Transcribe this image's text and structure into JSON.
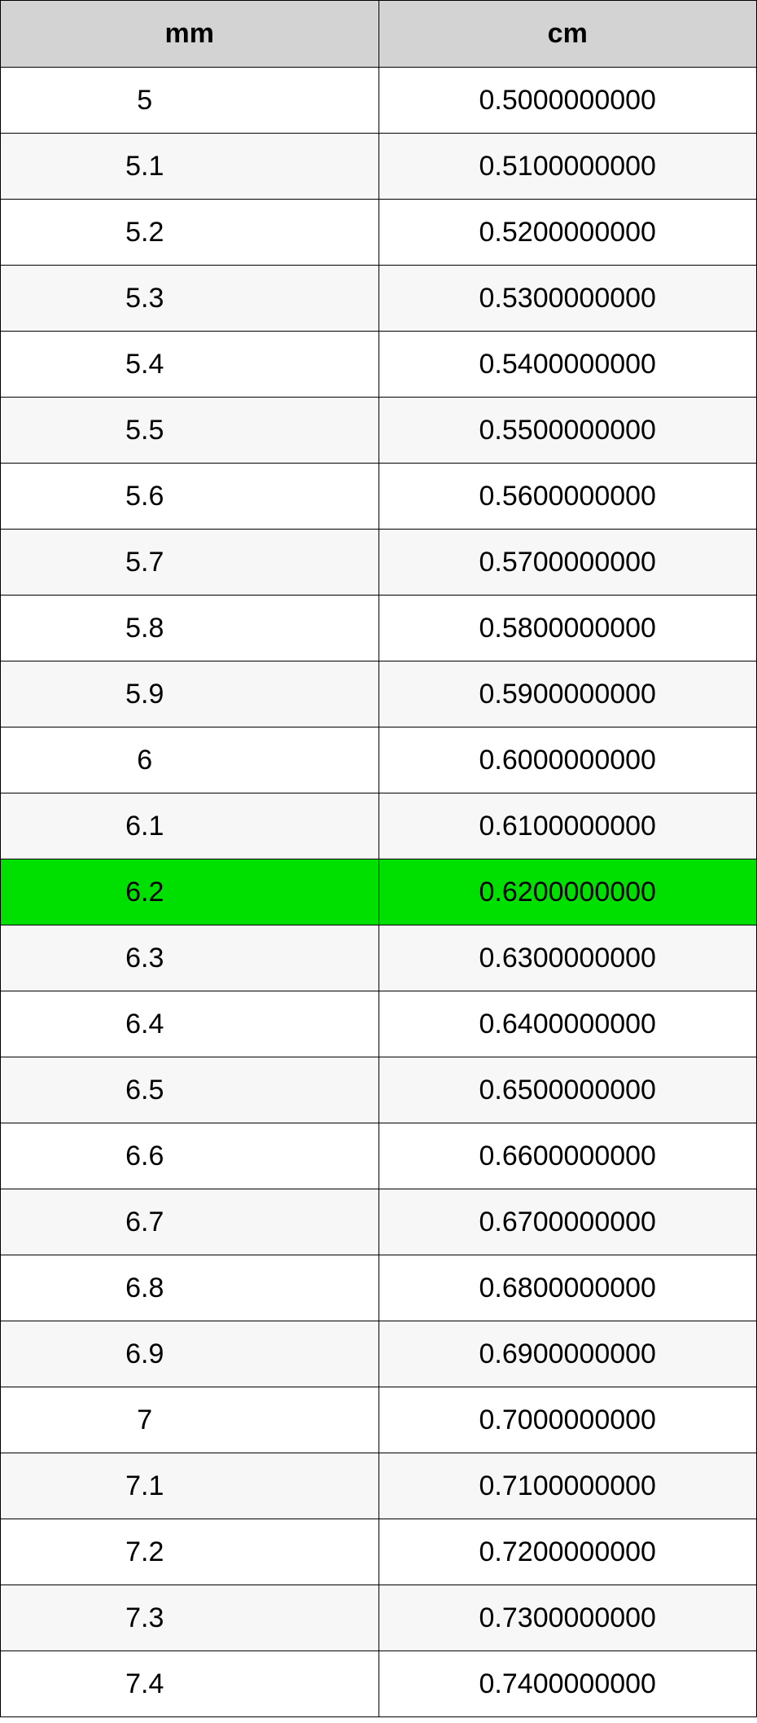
{
  "table": {
    "header_bg": "#d3d3d3",
    "row_bg_even": "#ffffff",
    "row_bg_odd": "#f7f7f7",
    "highlight_bg": "#00e000",
    "border_color": "#000000",
    "text_color": "#000000",
    "font_family": "Arial, Helvetica, sans-serif",
    "header_fontsize": 34,
    "cell_fontsize": 34,
    "columns": [
      {
        "label": "mm",
        "align": "center"
      },
      {
        "label": "cm",
        "align": "center"
      }
    ],
    "highlight_index": 12,
    "rows": [
      {
        "mm": "5",
        "cm": "0.5000000000"
      },
      {
        "mm": "5.1",
        "cm": "0.5100000000"
      },
      {
        "mm": "5.2",
        "cm": "0.5200000000"
      },
      {
        "mm": "5.3",
        "cm": "0.5300000000"
      },
      {
        "mm": "5.4",
        "cm": "0.5400000000"
      },
      {
        "mm": "5.5",
        "cm": "0.5500000000"
      },
      {
        "mm": "5.6",
        "cm": "0.5600000000"
      },
      {
        "mm": "5.7",
        "cm": "0.5700000000"
      },
      {
        "mm": "5.8",
        "cm": "0.5800000000"
      },
      {
        "mm": "5.9",
        "cm": "0.5900000000"
      },
      {
        "mm": "6",
        "cm": "0.6000000000"
      },
      {
        "mm": "6.1",
        "cm": "0.6100000000"
      },
      {
        "mm": "6.2",
        "cm": "0.6200000000"
      },
      {
        "mm": "6.3",
        "cm": "0.6300000000"
      },
      {
        "mm": "6.4",
        "cm": "0.6400000000"
      },
      {
        "mm": "6.5",
        "cm": "0.6500000000"
      },
      {
        "mm": "6.6",
        "cm": "0.6600000000"
      },
      {
        "mm": "6.7",
        "cm": "0.6700000000"
      },
      {
        "mm": "6.8",
        "cm": "0.6800000000"
      },
      {
        "mm": "6.9",
        "cm": "0.6900000000"
      },
      {
        "mm": "7",
        "cm": "0.7000000000"
      },
      {
        "mm": "7.1",
        "cm": "0.7100000000"
      },
      {
        "mm": "7.2",
        "cm": "0.7200000000"
      },
      {
        "mm": "7.3",
        "cm": "0.7300000000"
      },
      {
        "mm": "7.4",
        "cm": "0.7400000000"
      }
    ]
  }
}
